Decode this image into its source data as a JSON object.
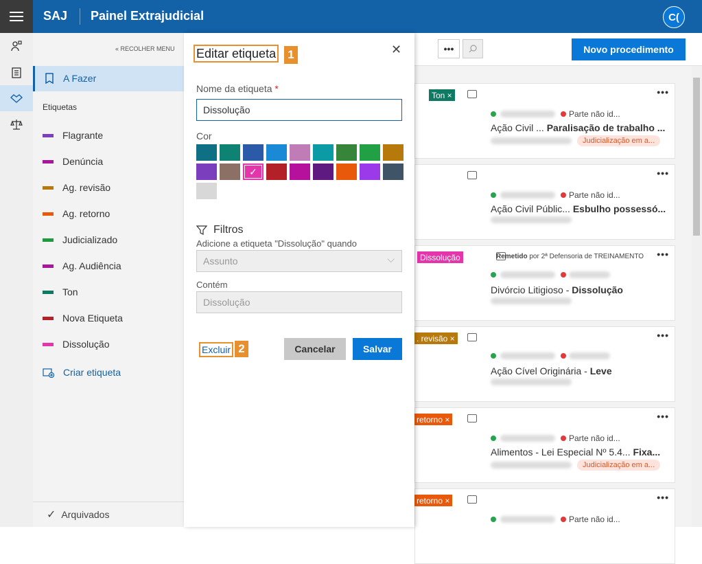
{
  "topbar": {
    "logo": "SAJ",
    "title": "Painel Extrajudicial",
    "avatar": "C("
  },
  "sidebar": {
    "collapse_label": "RECOLHER MENU",
    "active_item": "A Fazer",
    "tags_heading": "Etiquetas",
    "tags": [
      {
        "label": "Flagrante",
        "color": "#7b3fbd"
      },
      {
        "label": "Denúncia",
        "color": "#a8179b"
      },
      {
        "label": "Ag. revisão",
        "color": "#b8790c"
      },
      {
        "label": "Ag. retorno",
        "color": "#e8590c"
      },
      {
        "label": "Judicializado",
        "color": "#1f9a3d"
      },
      {
        "label": "Ag. Audiência",
        "color": "#a8179b"
      },
      {
        "label": "Ton",
        "color": "#0e7a63"
      },
      {
        "label": "Nova Etiqueta",
        "color": "#b32028"
      },
      {
        "label": "Dissolução",
        "color": "#e535ab"
      }
    ],
    "create_label": "Criar etiqueta",
    "archived_label": "Arquivados"
  },
  "toolbar": {
    "more": "•••",
    "new_button": "Novo procedimento"
  },
  "modal": {
    "title": "Editar etiqueta",
    "title_marker": "1",
    "name_label": "Nome da etiqueta",
    "required_mark": "*",
    "name_value": "Dissolução",
    "color_label": "Cor",
    "colors": [
      "#0e6f85",
      "#0e8273",
      "#2a5aa8",
      "#1b8ad6",
      "#c07cb6",
      "#0c9aa4",
      "#37853a",
      "#22a046",
      "#b8790c",
      "#7b3fbd",
      "#8c7066",
      "#e535ab",
      "#b32028",
      "#b5119c",
      "#5e1a80",
      "#e8590c",
      "#9b3ae8",
      "#3f5466",
      "#d8d8d8"
    ],
    "selected_color": "#e535ab",
    "filters_title": "Filtros",
    "filters_desc": "Adicione a etiqueta \"Dissolução\" quando",
    "field_value": "Assunto",
    "contains_label": "Contém",
    "contains_value": "Dissolução",
    "delete_label": "Excluir",
    "delete_marker": "2",
    "cancel_label": "Cancelar",
    "save_label": "Salvar"
  },
  "cards": [
    {
      "chip": "Ton ×",
      "chip_color": "#0e7a63",
      "party": "Parte não id...",
      "title_a": "Ação Civil ... ",
      "title_b": "Paralisação de trabalho ...",
      "status": "Judicialização em a..."
    },
    {
      "chip": "",
      "chip_color": "",
      "party": "Parte não id...",
      "title_a": "Ação Civil Públic... ",
      "title_b": "Esbulho possessó...",
      "status": ""
    },
    {
      "chip": "Dissolução",
      "chip_color": "#e535ab",
      "sent": "Remetido",
      "sent_by": "por 2ª Defensoria de TREINAMENTO",
      "party": "",
      "title_a": "Divórcio Litigioso - ",
      "title_b": "Dissolução",
      "status": ""
    },
    {
      "chip": ". revisão ×",
      "chip_color": "#b8790c",
      "party": "",
      "title_a": "Ação Cível Originária - ",
      "title_b": "Leve",
      "status": ""
    },
    {
      "chip": "retorno ×",
      "chip_color": "#e8590c",
      "party": "Parte não id...",
      "title_a": "Alimentos - Lei Especial Nº 5.4... ",
      "title_b": "Fixa...",
      "status": "Judicialização em a..."
    },
    {
      "chip": "retorno ×",
      "chip_color": "#e8590c",
      "party": "Parte não id...",
      "title_a": "",
      "title_b": "",
      "status": ""
    }
  ]
}
